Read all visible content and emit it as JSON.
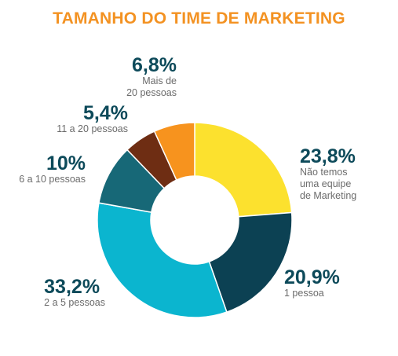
{
  "chart_data": {
    "type": "pie",
    "title": "TAMANHO DO TIME DE MARKETING",
    "slices": [
      {
        "label": "Não temos uma equipe de Marketing",
        "value": 23.8,
        "display": "23,8%",
        "lines": [
          "Não temos",
          "uma equipe",
          "de Marketing"
        ],
        "color": "#fce12e"
      },
      {
        "label": "1 pessoa",
        "value": 20.9,
        "display": "20,9%",
        "lines": [
          "1 pessoa"
        ],
        "color": "#0c4153"
      },
      {
        "label": "2 a 5 pessoas",
        "value": 33.2,
        "display": "33,2%",
        "lines": [
          "2 a 5 pessoas"
        ],
        "color": "#0bb5cf"
      },
      {
        "label": "6 a 10 pessoas",
        "value": 10,
        "display": "10%",
        "lines": [
          "6 a 10 pessoas"
        ],
        "color": "#176877"
      },
      {
        "label": "11 a 20 pessoas",
        "value": 5.4,
        "display": "5,4%",
        "lines": [
          "11 a 20 pessoas"
        ],
        "color": "#6e2d13"
      },
      {
        "label": "Mais de 20 pessoas",
        "value": 6.8,
        "display": "6,8%",
        "lines": [
          "Mais de",
          "20 pessoas"
        ],
        "color": "#f7931e"
      }
    ]
  }
}
